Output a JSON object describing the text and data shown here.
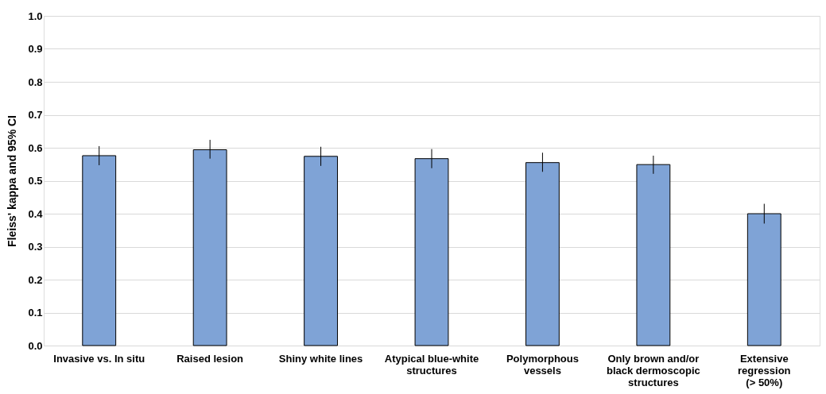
{
  "chart_data": {
    "type": "bar",
    "ylabel": "Fleiss' kappa and 95% CI",
    "categories": [
      "Invasive vs. In situ",
      "Raised lesion",
      "Shiny white lines",
      "Atypical blue-white structures",
      "Polymorphous vessels",
      "Only brown and/or black dermoscopic structures",
      "Extensive regression (> 50%)"
    ],
    "values": [
      0.576,
      0.594,
      0.574,
      0.567,
      0.555,
      0.549,
      0.4
    ],
    "errors": [
      [
        0.547,
        0.605
      ],
      [
        0.567,
        0.624
      ],
      [
        0.545,
        0.603
      ],
      [
        0.538,
        0.596
      ],
      [
        0.527,
        0.585
      ],
      [
        0.521,
        0.576
      ],
      [
        0.37,
        0.43
      ]
    ],
    "color": "#7fa3d6",
    "ylim": [
      0,
      1.0
    ],
    "yticks": [
      {
        "value": 0,
        "label": "0.0"
      },
      {
        "value": 0.1,
        "label": "0.1"
      },
      {
        "value": 0.2,
        "label": "0.2"
      },
      {
        "value": 0.3,
        "label": "0.3"
      },
      {
        "value": 0.4,
        "label": "0.4"
      },
      {
        "value": 0.5,
        "label": "0.5"
      },
      {
        "value": 0.6,
        "label": "0.6"
      },
      {
        "value": 0.7,
        "label": "0.7"
      },
      {
        "value": 0.8,
        "label": "0.8"
      },
      {
        "value": 0.9,
        "label": "0.9"
      },
      {
        "value": 1.0,
        "label": "1.0"
      }
    ],
    "grid": "y"
  }
}
